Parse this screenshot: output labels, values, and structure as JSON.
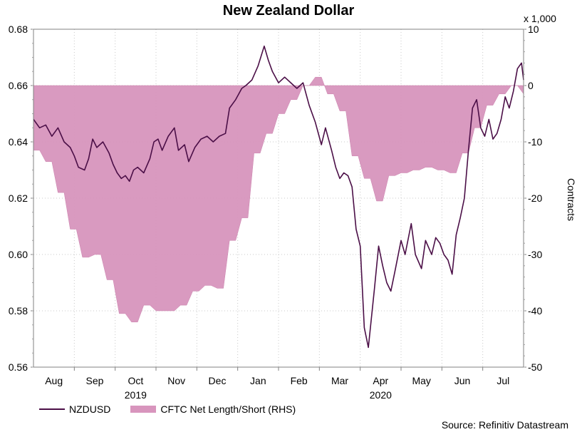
{
  "chart_data": {
    "type": "line+area",
    "title": "New Zealand Dollar",
    "left_axis": {
      "ylim": [
        0.56,
        0.68
      ],
      "ticks": [
        "0.68",
        "0.66",
        "0.64",
        "0.62",
        "0.60",
        "0.58",
        "0.56"
      ]
    },
    "right_axis": {
      "label": "Contracts",
      "multiplier_label": "x 1,000",
      "ylim": [
        -50,
        10
      ],
      "ticks": [
        "10",
        "0",
        "-10",
        "-20",
        "-30",
        "-40",
        "-50"
      ]
    },
    "months": [
      "Aug",
      "Sep",
      "Oct",
      "Nov",
      "Dec",
      "Jan",
      "Feb",
      "Mar",
      "Apr",
      "May",
      "Jun",
      "Jul"
    ],
    "years": [
      {
        "label": "2019",
        "at_month": 2.5
      },
      {
        "label": "2020",
        "at_month": 8.5
      }
    ],
    "x_range_months": [
      0,
      12.0
    ],
    "series": [
      {
        "name": "NZDUSD",
        "axis": "left",
        "color": "#4b0f47",
        "points": [
          [
            0.0,
            0.648
          ],
          [
            0.15,
            0.645
          ],
          [
            0.3,
            0.646
          ],
          [
            0.45,
            0.642
          ],
          [
            0.6,
            0.645
          ],
          [
            0.75,
            0.64
          ],
          [
            0.9,
            0.638
          ],
          [
            1.0,
            0.635
          ],
          [
            1.1,
            0.631
          ],
          [
            1.25,
            0.63
          ],
          [
            1.35,
            0.634
          ],
          [
            1.45,
            0.641
          ],
          [
            1.55,
            0.638
          ],
          [
            1.7,
            0.64
          ],
          [
            1.85,
            0.636
          ],
          [
            1.95,
            0.632
          ],
          [
            2.05,
            0.629
          ],
          [
            2.15,
            0.627
          ],
          [
            2.25,
            0.628
          ],
          [
            2.35,
            0.626
          ],
          [
            2.45,
            0.63
          ],
          [
            2.55,
            0.631
          ],
          [
            2.7,
            0.629
          ],
          [
            2.85,
            0.634
          ],
          [
            2.95,
            0.64
          ],
          [
            3.05,
            0.641
          ],
          [
            3.15,
            0.637
          ],
          [
            3.3,
            0.642
          ],
          [
            3.45,
            0.645
          ],
          [
            3.55,
            0.637
          ],
          [
            3.7,
            0.639
          ],
          [
            3.8,
            0.633
          ],
          [
            3.95,
            0.638
          ],
          [
            4.1,
            0.641
          ],
          [
            4.25,
            0.642
          ],
          [
            4.4,
            0.64
          ],
          [
            4.55,
            0.642
          ],
          [
            4.7,
            0.643
          ],
          [
            4.8,
            0.652
          ],
          [
            4.95,
            0.655
          ],
          [
            5.1,
            0.659
          ],
          [
            5.2,
            0.66
          ],
          [
            5.35,
            0.662
          ],
          [
            5.5,
            0.667
          ],
          [
            5.65,
            0.674
          ],
          [
            5.75,
            0.669
          ],
          [
            5.85,
            0.665
          ],
          [
            6.0,
            0.661
          ],
          [
            6.15,
            0.663
          ],
          [
            6.3,
            0.661
          ],
          [
            6.45,
            0.659
          ],
          [
            6.6,
            0.661
          ],
          [
            6.75,
            0.653
          ],
          [
            6.9,
            0.647
          ],
          [
            7.05,
            0.639
          ],
          [
            7.15,
            0.645
          ],
          [
            7.3,
            0.637
          ],
          [
            7.4,
            0.631
          ],
          [
            7.5,
            0.627
          ],
          [
            7.6,
            0.629
          ],
          [
            7.7,
            0.628
          ],
          [
            7.8,
            0.624
          ],
          [
            7.9,
            0.609
          ],
          [
            8.0,
            0.603
          ],
          [
            8.1,
            0.574
          ],
          [
            8.2,
            0.567
          ],
          [
            8.35,
            0.588
          ],
          [
            8.45,
            0.603
          ],
          [
            8.55,
            0.596
          ],
          [
            8.65,
            0.59
          ],
          [
            8.75,
            0.587
          ],
          [
            8.85,
            0.594
          ],
          [
            9.0,
            0.605
          ],
          [
            9.1,
            0.6
          ],
          [
            9.25,
            0.611
          ],
          [
            9.35,
            0.6
          ],
          [
            9.5,
            0.595
          ],
          [
            9.6,
            0.605
          ],
          [
            9.75,
            0.6
          ],
          [
            9.85,
            0.606
          ],
          [
            9.95,
            0.604
          ],
          [
            10.05,
            0.6
          ],
          [
            10.15,
            0.598
          ],
          [
            10.25,
            0.593
          ],
          [
            10.35,
            0.607
          ],
          [
            10.45,
            0.613
          ],
          [
            10.55,
            0.62
          ],
          [
            10.65,
            0.637
          ],
          [
            10.75,
            0.652
          ],
          [
            10.85,
            0.655
          ],
          [
            10.95,
            0.645
          ],
          [
            11.05,
            0.642
          ],
          [
            11.15,
            0.648
          ],
          [
            11.25,
            0.641
          ],
          [
            11.35,
            0.643
          ],
          [
            11.45,
            0.648
          ],
          [
            11.55,
            0.656
          ],
          [
            11.65,
            0.652
          ],
          [
            11.75,
            0.658
          ],
          [
            11.85,
            0.666
          ],
          [
            11.95,
            0.668
          ],
          [
            12.0,
            0.662
          ]
        ]
      },
      {
        "name": "CFTC Net Length/Short (RHS)",
        "axis": "right",
        "color": "#d895bd",
        "points": [
          [
            0.0,
            -11.5
          ],
          [
            0.15,
            -11.5
          ],
          [
            0.3,
            -13.5
          ],
          [
            0.45,
            -13.5
          ],
          [
            0.6,
            -19
          ],
          [
            0.75,
            -19
          ],
          [
            0.9,
            -25.5
          ],
          [
            1.05,
            -25.5
          ],
          [
            1.2,
            -30.5
          ],
          [
            1.35,
            -30.5
          ],
          [
            1.5,
            -30
          ],
          [
            1.65,
            -30
          ],
          [
            1.8,
            -34.5
          ],
          [
            1.95,
            -34.5
          ],
          [
            2.1,
            -40.5
          ],
          [
            2.25,
            -40.5
          ],
          [
            2.4,
            -42
          ],
          [
            2.55,
            -42
          ],
          [
            2.7,
            -39
          ],
          [
            2.85,
            -39
          ],
          [
            3.0,
            -40
          ],
          [
            3.15,
            -40
          ],
          [
            3.3,
            -40
          ],
          [
            3.45,
            -40
          ],
          [
            3.6,
            -39
          ],
          [
            3.75,
            -39
          ],
          [
            3.9,
            -36.5
          ],
          [
            4.05,
            -36.5
          ],
          [
            4.2,
            -35.5
          ],
          [
            4.35,
            -35.5
          ],
          [
            4.5,
            -36
          ],
          [
            4.65,
            -36
          ],
          [
            4.8,
            -27.5
          ],
          [
            4.95,
            -27.5
          ],
          [
            5.1,
            -23.5
          ],
          [
            5.25,
            -23.5
          ],
          [
            5.4,
            -12
          ],
          [
            5.55,
            -12
          ],
          [
            5.7,
            -8.5
          ],
          [
            5.85,
            -8.5
          ],
          [
            6.0,
            -5
          ],
          [
            6.15,
            -5
          ],
          [
            6.3,
            -2.5
          ],
          [
            6.45,
            -2.5
          ],
          [
            6.6,
            0
          ],
          [
            6.75,
            0
          ],
          [
            6.9,
            1.5
          ],
          [
            7.05,
            1.5
          ],
          [
            7.2,
            -1.5
          ],
          [
            7.35,
            -1.5
          ],
          [
            7.5,
            -4.5
          ],
          [
            7.65,
            -4.5
          ],
          [
            7.8,
            -12.5
          ],
          [
            7.95,
            -12.5
          ],
          [
            8.1,
            -16.5
          ],
          [
            8.25,
            -16.5
          ],
          [
            8.4,
            -20.5
          ],
          [
            8.55,
            -20.5
          ],
          [
            8.7,
            -16
          ],
          [
            8.85,
            -16
          ],
          [
            9.0,
            -15.5
          ],
          [
            9.15,
            -15.5
          ],
          [
            9.3,
            -15
          ],
          [
            9.45,
            -15
          ],
          [
            9.6,
            -14.5
          ],
          [
            9.75,
            -14.5
          ],
          [
            9.9,
            -15
          ],
          [
            10.05,
            -15
          ],
          [
            10.2,
            -15.5
          ],
          [
            10.35,
            -15.5
          ],
          [
            10.5,
            -12
          ],
          [
            10.65,
            -12
          ],
          [
            10.8,
            -7.5
          ],
          [
            10.95,
            -7.5
          ],
          [
            11.1,
            -3.5
          ],
          [
            11.25,
            -3.5
          ],
          [
            11.4,
            -1.5
          ],
          [
            11.55,
            -1.5
          ],
          [
            11.7,
            0
          ],
          [
            11.85,
            0
          ],
          [
            12.0,
            -1.5
          ]
        ]
      }
    ]
  },
  "legend": {
    "line_label": "NZDUSD",
    "area_label": "CFTC Net Length/Short (RHS)"
  },
  "source": "Source: Refinitiv Datastream"
}
